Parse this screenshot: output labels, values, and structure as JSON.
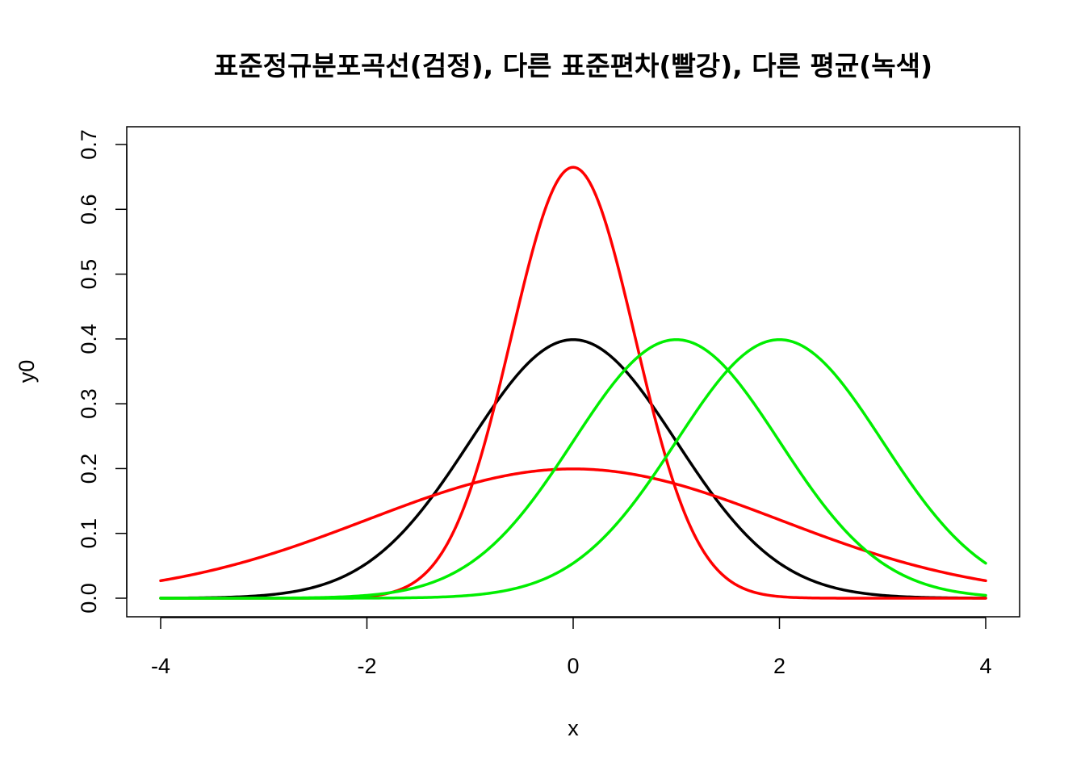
{
  "chart_data": {
    "type": "line",
    "title": "표준정규분포곡선(검정), 다른 표준편차(빨강), 다른 평균(녹색)",
    "xlabel": "x",
    "ylabel": "y0",
    "xlim": [
      -4,
      4
    ],
    "ylim": [
      0,
      0.7
    ],
    "x_ticks": [
      -4,
      -2,
      0,
      2,
      4
    ],
    "x_tick_labels": [
      "-4",
      "-2",
      "0",
      "2",
      "4"
    ],
    "y_ticks": [
      0.0,
      0.1,
      0.2,
      0.3,
      0.4,
      0.5,
      0.6,
      0.7
    ],
    "y_tick_labels": [
      "0.0",
      "0.1",
      "0.2",
      "0.3",
      "0.4",
      "0.5",
      "0.6",
      "0.7"
    ],
    "grid": false,
    "legend": "none",
    "series": [
      {
        "color": "#000000",
        "distribution": "normal",
        "mean": 0,
        "sd": 1
      },
      {
        "color": "#FF0000",
        "distribution": "normal",
        "mean": 0,
        "sd": 0.6
      },
      {
        "color": "#FF0000",
        "distribution": "normal",
        "mean": 0,
        "sd": 2
      },
      {
        "color": "#00EE00",
        "distribution": "normal",
        "mean": 1,
        "sd": 1
      },
      {
        "color": "#00EE00",
        "distribution": "normal",
        "mean": 2,
        "sd": 1
      }
    ]
  }
}
